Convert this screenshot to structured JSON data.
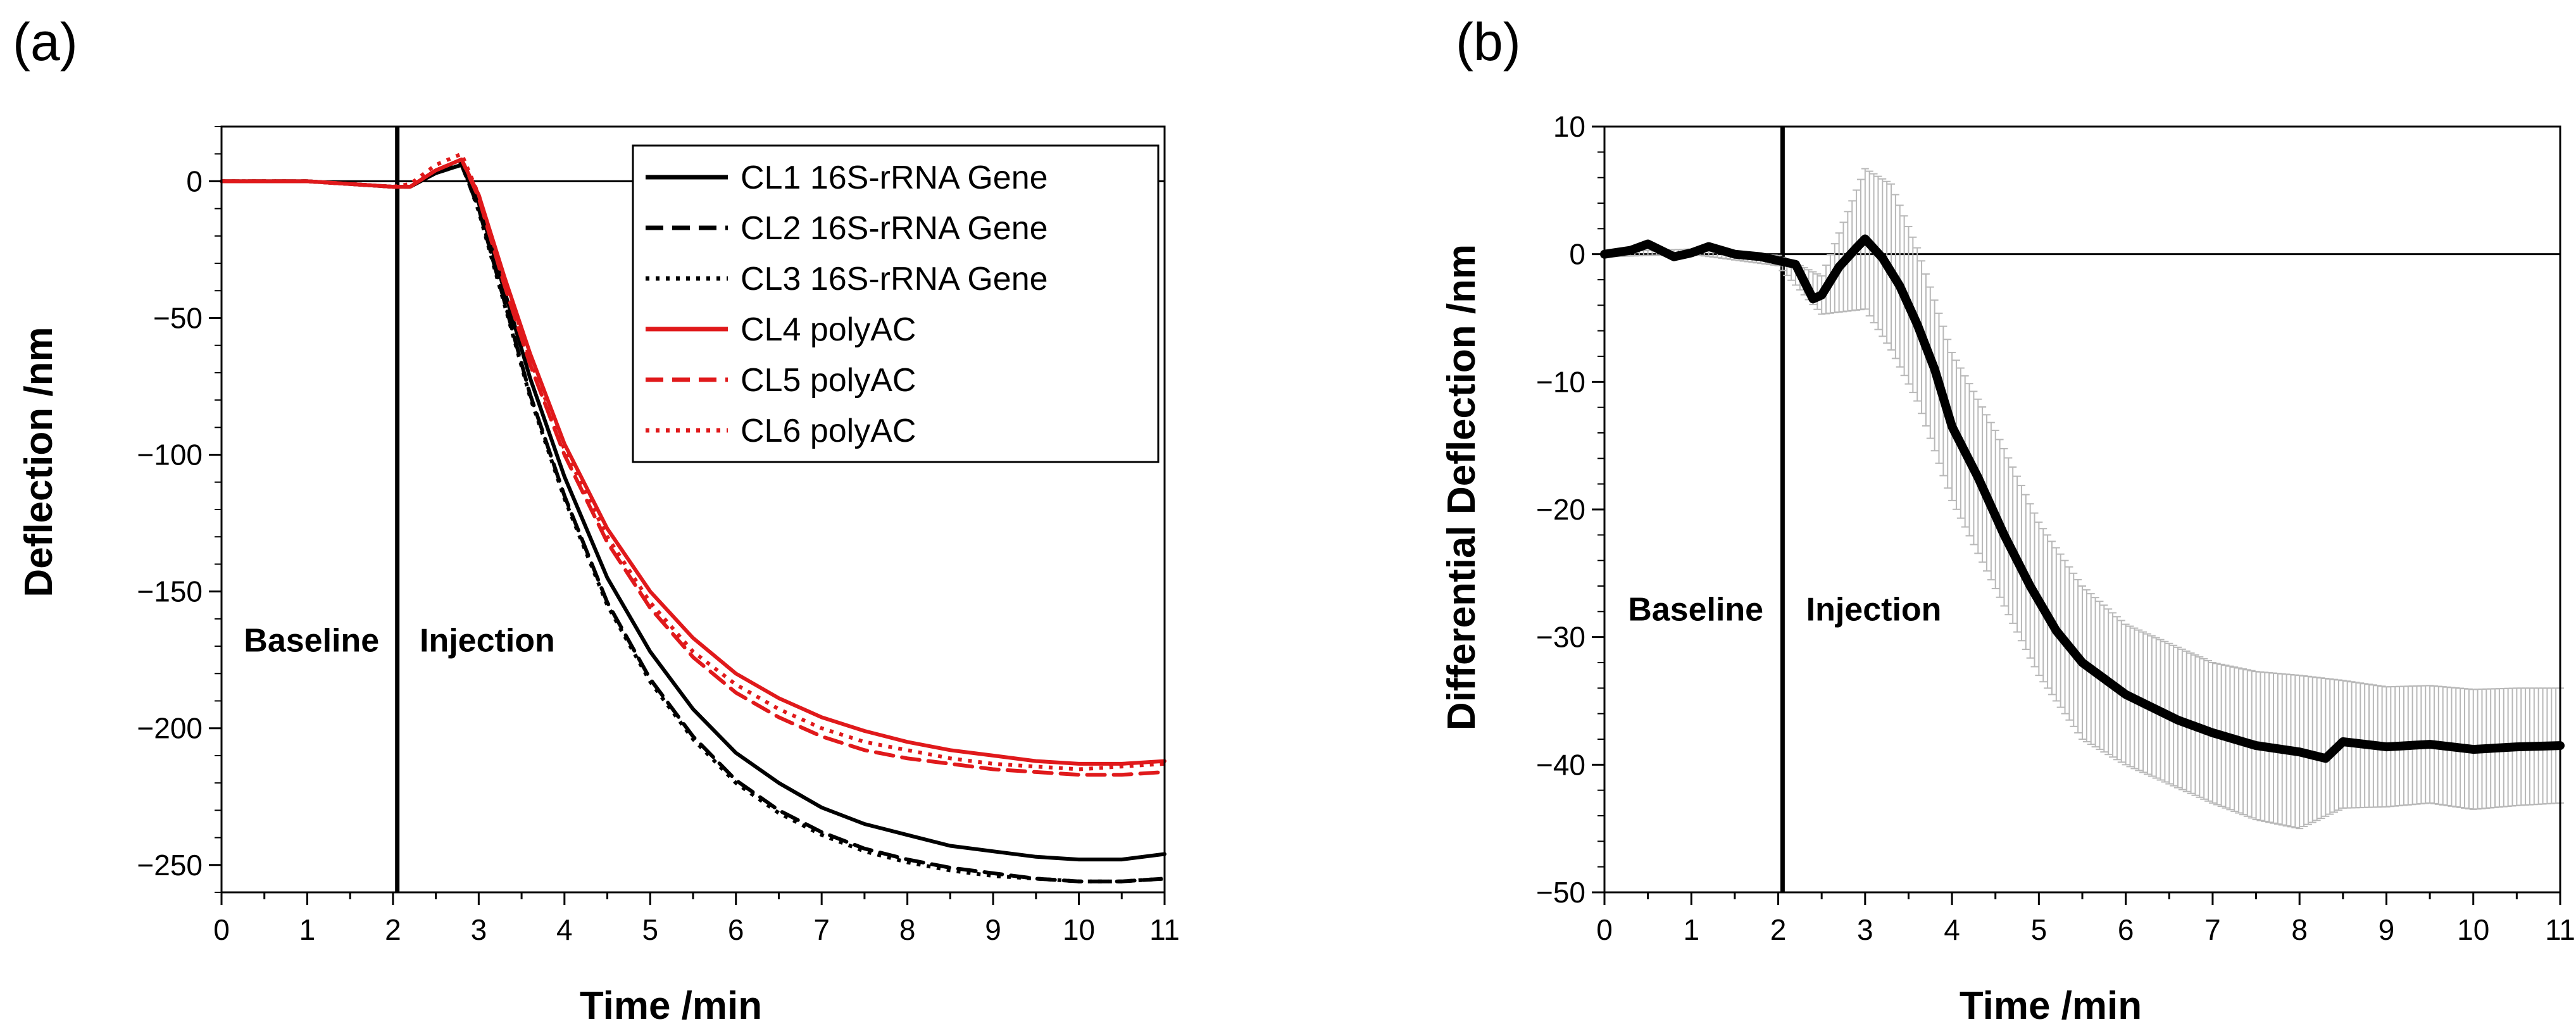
{
  "chart_data": [
    {
      "type": "line",
      "panel_label": "(a)",
      "xlabel": "Time /min",
      "ylabel": "Deflection /nm",
      "xlim": [
        0,
        11
      ],
      "ylim": [
        -260,
        20
      ],
      "xticks": [
        0,
        1,
        2,
        3,
        4,
        5,
        6,
        7,
        8,
        9,
        10,
        11
      ],
      "yticks": [
        0,
        -50,
        -100,
        -150,
        -200,
        -250
      ],
      "ytick_labels": [
        "0",
        "−50",
        "−100",
        "−150",
        "−200",
        "−250"
      ],
      "vline_x": 2.05,
      "hline_y": 0,
      "annotations": [
        {
          "text": "Baseline",
          "x": 1.05,
          "y": -172
        },
        {
          "text": "Injection",
          "x": 3.1,
          "y": -172
        }
      ],
      "legend_position": "top-right",
      "series": [
        {
          "name": "CL1 16S-rRNA Gene",
          "color": "#000000",
          "style": "solid",
          "x": [
            0,
            1,
            2,
            2.2,
            2.5,
            2.8,
            3,
            3.3,
            3.6,
            4,
            4.5,
            5,
            5.5,
            6,
            6.5,
            7,
            7.5,
            8,
            8.5,
            9,
            9.5,
            10,
            10.5,
            11
          ],
          "y": [
            0,
            0,
            -2,
            -2,
            3,
            6,
            -8,
            -40,
            -72,
            -108,
            -145,
            -172,
            -193,
            -209,
            -220,
            -229,
            -235,
            -239,
            -243,
            -245,
            -247,
            -248,
            -248,
            -246
          ]
        },
        {
          "name": "CL2 16S-rRNA Gene",
          "color": "#000000",
          "style": "dashed",
          "x": [
            0,
            1,
            2,
            2.2,
            2.5,
            2.8,
            3,
            3.3,
            3.6,
            4,
            4.5,
            5,
            5.5,
            6,
            6.5,
            7,
            7.5,
            8,
            8.5,
            9,
            9.5,
            10,
            10.5,
            11
          ],
          "y": [
            0,
            0,
            -2,
            -2,
            3,
            6,
            -10,
            -44,
            -78,
            -115,
            -154,
            -182,
            -203,
            -219,
            -230,
            -238,
            -244,
            -248,
            -251,
            -253,
            -255,
            -256,
            -256,
            -255
          ]
        },
        {
          "name": "CL3 16S-rRNA Gene",
          "color": "#000000",
          "style": "dotted",
          "x": [
            0,
            1,
            2,
            2.2,
            2.5,
            2.8,
            3,
            3.3,
            3.6,
            4,
            4.5,
            5,
            5.5,
            6,
            6.5,
            7,
            7.5,
            8,
            8.5,
            9,
            9.5,
            10,
            10.5,
            11
          ],
          "y": [
            0,
            0,
            -2,
            -2,
            4,
            7,
            -11,
            -45,
            -79,
            -116,
            -155,
            -183,
            -204,
            -220,
            -231,
            -239,
            -245,
            -249,
            -252,
            -254,
            -255,
            -256,
            -256,
            -255
          ]
        },
        {
          "name": "CL4 polyAC",
          "color": "#e0191b",
          "style": "solid",
          "x": [
            0,
            1,
            2,
            2.2,
            2.5,
            2.8,
            3,
            3.3,
            3.6,
            4,
            4.5,
            5,
            5.5,
            6,
            6.5,
            7,
            7.5,
            8,
            8.5,
            9,
            9.5,
            10,
            10.5,
            11
          ],
          "y": [
            0,
            0,
            -2,
            -2,
            4,
            8,
            -5,
            -35,
            -63,
            -96,
            -127,
            -150,
            -167,
            -180,
            -189,
            -196,
            -201,
            -205,
            -208,
            -210,
            -212,
            -213,
            -213,
            -212
          ]
        },
        {
          "name": "CL5 polyAC",
          "color": "#e0191b",
          "style": "dashed",
          "x": [
            0,
            1,
            2,
            2.2,
            2.5,
            2.8,
            3,
            3.3,
            3.6,
            4,
            4.5,
            5,
            5.5,
            6,
            6.5,
            7,
            7.5,
            8,
            8.5,
            9,
            9.5,
            10,
            10.5,
            11
          ],
          "y": [
            0,
            0,
            -2,
            -2,
            4,
            8,
            -6,
            -38,
            -67,
            -100,
            -132,
            -156,
            -174,
            -187,
            -196,
            -203,
            -208,
            -211,
            -213,
            -215,
            -216,
            -217,
            -217,
            -216
          ]
        },
        {
          "name": "CL6 polyAC",
          "color": "#e0191b",
          "style": "dotted",
          "x": [
            0,
            1,
            2,
            2.2,
            2.5,
            2.8,
            3,
            3.3,
            3.6,
            4,
            4.5,
            5,
            5.5,
            6,
            6.5,
            7,
            7.5,
            8,
            8.5,
            9,
            9.5,
            10,
            10.5,
            11
          ],
          "y": [
            0,
            0,
            -2,
            -1,
            6,
            10,
            -5,
            -36,
            -65,
            -98,
            -130,
            -154,
            -172,
            -184,
            -193,
            -200,
            -205,
            -208,
            -211,
            -213,
            -214,
            -215,
            -214,
            -213
          ]
        }
      ]
    },
    {
      "type": "line",
      "panel_label": "(b)",
      "xlabel": "Time /min",
      "ylabel": "Differential Deflection /nm",
      "xlim": [
        0,
        11
      ],
      "ylim": [
        -50,
        10
      ],
      "xticks": [
        0,
        1,
        2,
        3,
        4,
        5,
        6,
        7,
        8,
        9,
        10,
        11
      ],
      "yticks": [
        10,
        0,
        -10,
        -20,
        -30,
        -40,
        -50
      ],
      "ytick_labels": [
        "10",
        "0",
        "−10",
        "−20",
        "−30",
        "−40",
        "−50"
      ],
      "vline_x": 2.05,
      "hline_y": 0,
      "annotations": [
        {
          "text": "Baseline",
          "x": 1.05,
          "y": -28.7
        },
        {
          "text": "Injection",
          "x": 3.1,
          "y": -28.7
        }
      ],
      "series": [
        {
          "name": "Differential Deflection",
          "color": "#000000",
          "style": "solid",
          "x": [
            0,
            0.3,
            0.5,
            0.8,
            1,
            1.2,
            1.5,
            1.8,
            2,
            2.2,
            2.4,
            2.5,
            2.7,
            2.9,
            3.0,
            3.2,
            3.4,
            3.6,
            3.8,
            4.0,
            4.3,
            4.6,
            4.9,
            5.2,
            5.5,
            5.7,
            6.0,
            6.3,
            6.6,
            7.0,
            7.5,
            8.0,
            8.3,
            8.5,
            9.0,
            9.5,
            10.0,
            10.5,
            11
          ],
          "y": [
            0,
            0.3,
            0.8,
            -0.2,
            0.1,
            0.6,
            0,
            -0.2,
            -0.5,
            -0.8,
            -3.5,
            -3.2,
            -1.0,
            0.5,
            1.2,
            -0.3,
            -2.5,
            -5.5,
            -9,
            -13.5,
            -17.5,
            -22,
            -26,
            -29.5,
            -32,
            -33,
            -34.5,
            -35.5,
            -36.5,
            -37.5,
            -38.5,
            -39,
            -39.5,
            -38.2,
            -38.6,
            -38.4,
            -38.8,
            -38.6,
            -38.5
          ]
        },
        {
          "name": "Error",
          "color": "#b8b8b8",
          "style": "errorbars",
          "x": [
            0,
            1,
            2,
            2.5,
            3.0,
            3.3,
            3.6,
            4.0,
            4.5,
            5.0,
            5.5,
            6.0,
            6.5,
            7.0,
            7.5,
            8.0,
            8.5,
            9.0,
            9.5,
            10.0,
            10.5,
            11
          ],
          "y": [
            0,
            0.2,
            -0.5,
            -3.2,
            1.2,
            -1.0,
            -5.5,
            -13.5,
            -20,
            -27,
            -32,
            -34.5,
            -36,
            -37.5,
            -38.5,
            -39,
            -38.4,
            -38.6,
            -38.4,
            -38.8,
            -38.6,
            -38.5
          ],
          "err": [
            0.2,
            0.2,
            0.4,
            1.5,
            5.5,
            6.5,
            6.0,
            5.8,
            6.2,
            6.0,
            6.0,
            5.5,
            5.5,
            5.5,
            5.8,
            6.0,
            5.0,
            4.7,
            4.6,
            4.7,
            4.6,
            4.5
          ]
        }
      ]
    }
  ]
}
